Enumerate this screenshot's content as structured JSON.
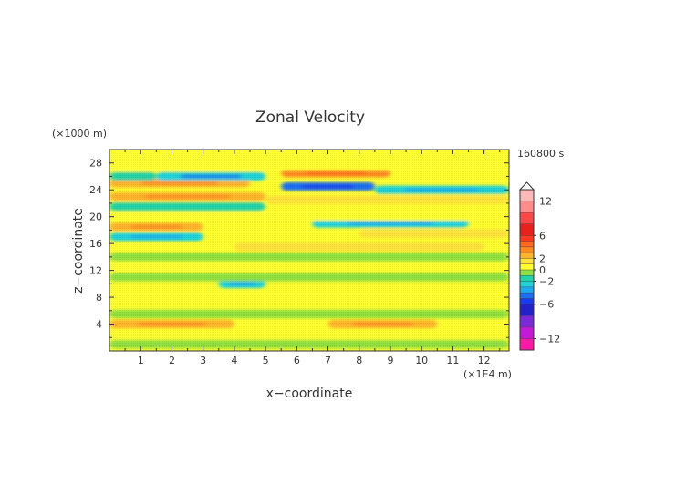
{
  "chart_data": {
    "type": "heatmap",
    "title": "Zonal Velocity",
    "xlabel": "x−coordinate",
    "ylabel": "z−coordinate",
    "x_unit": "(×1E4 m)",
    "y_unit": "(×1000 m)",
    "time_label": "160800 s",
    "xlim": [
      0,
      12.8
    ],
    "ylim": [
      0,
      30
    ],
    "x_ticks": [
      1,
      2,
      3,
      4,
      5,
      6,
      7,
      8,
      9,
      10,
      11,
      12
    ],
    "y_ticks": [
      4,
      8,
      12,
      16,
      20,
      24,
      28
    ],
    "colorbar": {
      "tick_labels": [
        "12",
        "6",
        "2",
        "0",
        "−2",
        "−6",
        "−12"
      ],
      "tick_values": [
        12,
        6,
        2,
        0,
        -2,
        -6,
        -12
      ],
      "levels": [
        -14,
        -12,
        -10,
        -8,
        -6,
        -5,
        -4,
        -3,
        -2,
        -1,
        0,
        1,
        2,
        3,
        4,
        5,
        6,
        8,
        10,
        12,
        14
      ],
      "colors": [
        "#ff1aa8",
        "#c21ad6",
        "#7a2ad6",
        "#2222c8",
        "#1a3cf0",
        "#1e6ef0",
        "#1ea8f0",
        "#1ed2dc",
        "#22d2a8",
        "#90e040",
        "#ffff30",
        "#ffe23a",
        "#ffb42a",
        "#ff8a20",
        "#ff6a1e",
        "#ff3a1e",
        "#e8201e",
        "#ff4848",
        "#ff8c8c",
        "#ffb8b8"
      ]
    },
    "field_bands": [
      {
        "z": 1.0,
        "x0": 0.0,
        "x1": 12.8,
        "u": -0.6
      },
      {
        "z": 2.5,
        "x0": 0.0,
        "x1": 12.8,
        "u": 0.6
      },
      {
        "z": 4.0,
        "x0": 0.0,
        "x1": 4.0,
        "u": 2.4
      },
      {
        "z": 4.0,
        "x0": 7.0,
        "x1": 10.5,
        "u": 2.6
      },
      {
        "z": 5.5,
        "x0": 0.0,
        "x1": 12.8,
        "u": -0.7
      },
      {
        "z": 8.0,
        "x0": 0.0,
        "x1": 12.8,
        "u": 0.5
      },
      {
        "z": 10.0,
        "x0": 3.5,
        "x1": 5.0,
        "u": -2.5
      },
      {
        "z": 11.0,
        "x0": 0.0,
        "x1": 12.8,
        "u": -0.8
      },
      {
        "z": 12.5,
        "x0": 0.0,
        "x1": 5.5,
        "u": 0.4
      },
      {
        "z": 14.0,
        "x0": 0.0,
        "x1": 12.8,
        "u": -0.6
      },
      {
        "z": 15.5,
        "x0": 4.0,
        "x1": 12.0,
        "u": 1.2
      },
      {
        "z": 17.0,
        "x0": 0.0,
        "x1": 3.0,
        "u": -2.5
      },
      {
        "z": 17.5,
        "x0": 8.0,
        "x1": 12.8,
        "u": 1.5
      },
      {
        "z": 18.5,
        "x0": 0.0,
        "x1": 3.0,
        "u": 2.8
      },
      {
        "z": 19.0,
        "x0": 6.5,
        "x1": 11.5,
        "u": -2.4
      },
      {
        "z": 20.0,
        "x0": 0.0,
        "x1": 12.8,
        "u": 0.5
      },
      {
        "z": 21.5,
        "x0": 0.0,
        "x1": 5.0,
        "u": -1.6
      },
      {
        "z": 22.5,
        "x0": 5.0,
        "x1": 12.8,
        "u": 1.3
      },
      {
        "z": 23.0,
        "x0": 0.0,
        "x1": 5.0,
        "u": 2.8
      },
      {
        "z": 24.5,
        "x0": 5.5,
        "x1": 8.5,
        "u": -4.5
      },
      {
        "z": 24.0,
        "x0": 8.5,
        "x1": 12.8,
        "u": -2.2
      },
      {
        "z": 25.0,
        "x0": 0.0,
        "x1": 4.5,
        "u": 2.4
      },
      {
        "z": 26.0,
        "x0": 1.5,
        "x1": 5.0,
        "u": -3.0
      },
      {
        "z": 26.5,
        "x0": 5.5,
        "x1": 9.0,
        "u": 3.5
      },
      {
        "z": 26.0,
        "x0": 0.0,
        "x1": 1.5,
        "u": -1.8
      },
      {
        "z": 27.5,
        "x0": 0.0,
        "x1": 12.8,
        "u": 0.4
      },
      {
        "z": 29.0,
        "x0": 0.0,
        "x1": 12.8,
        "u": 0.6
      }
    ]
  }
}
